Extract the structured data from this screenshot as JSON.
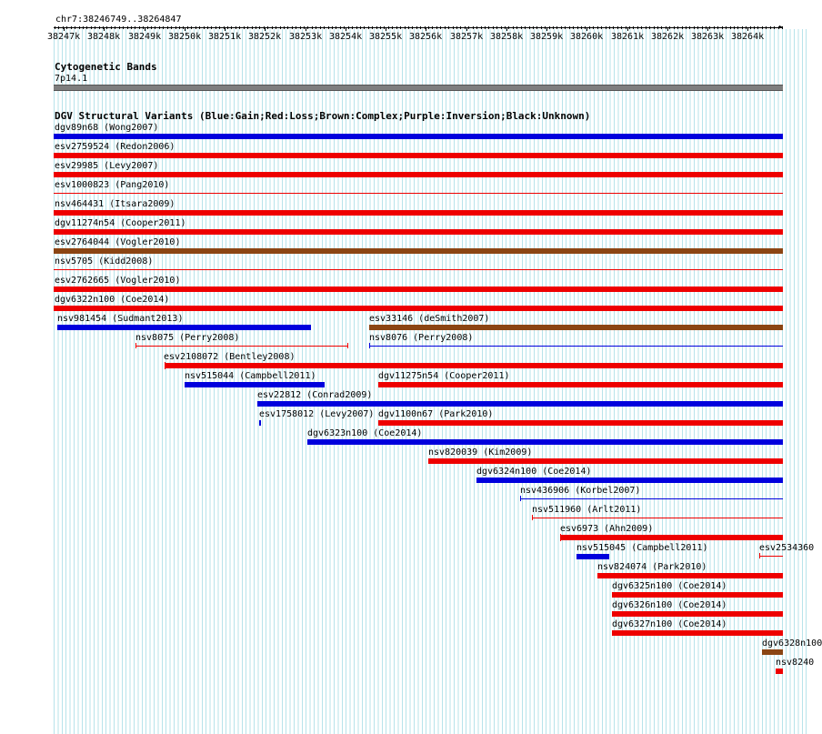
{
  "location": "chr7:38246749..38264847",
  "ruler": {
    "labels": [
      "38247k",
      "38248k",
      "38249k",
      "38250k",
      "38251k",
      "38252k",
      "38253k",
      "38254k",
      "38255k",
      "38256k",
      "38257k",
      "38258k",
      "38259k",
      "38260k",
      "38261k",
      "38262k",
      "38263k",
      "38264k"
    ]
  },
  "cytobands": {
    "title": "Cytogenetic Bands",
    "band": "7p14.1"
  },
  "dgv": {
    "title": "DGV Structural Variants (Blue:Gain;Red:Loss;Brown:Complex;Purple:Inversion;Black:Unknown)",
    "colors": {
      "blue": "#0000dd",
      "red": "#ee0000",
      "brown": "#8b4513"
    },
    "variants": [
      {
        "label": "dgv89n68 (Wong2007)",
        "color": "blue"
      },
      {
        "label": "esv2759524 (Redon2006)",
        "color": "red"
      },
      {
        "label": "esv29985 (Levy2007)",
        "color": "red"
      },
      {
        "label": "esv1000823 (Pang2010)",
        "color": "red"
      },
      {
        "label": "nsv464431 (Itsara2009)",
        "color": "red"
      },
      {
        "label": "dgv11274n54 (Cooper2011)",
        "color": "red"
      },
      {
        "label": "esv2764044 (Vogler2010)",
        "color": "brown"
      },
      {
        "label": "nsv5705 (Kidd2008)",
        "color": "red"
      },
      {
        "label": "esv2762665 (Vogler2010)",
        "color": "red"
      },
      {
        "label": "dgv6322n100 (Coe2014)",
        "color": "red"
      },
      {
        "label": "nsv981454 (Sudmant2013)",
        "color": "blue"
      },
      {
        "label": "esv33146 (deSmith2007)",
        "color": "brown"
      },
      {
        "label": "nsv8075 (Perry2008)",
        "color": "red"
      },
      {
        "label": "nsv8076 (Perry2008)",
        "color": "blue"
      },
      {
        "label": "esv2108072 (Bentley2008)",
        "color": "red"
      },
      {
        "label": "nsv515044 (Campbell2011)",
        "color": "blue"
      },
      {
        "label": "dgv11275n54 (Cooper2011)",
        "color": "red"
      },
      {
        "label": "esv22812 (Conrad2009)",
        "color": "blue"
      },
      {
        "label": "esv1758012 (Levy2007)",
        "color": "blue"
      },
      {
        "label": "dgv1100n67 (Park2010)",
        "color": "red"
      },
      {
        "label": "dgv6323n100 (Coe2014)",
        "color": "blue"
      },
      {
        "label": "nsv820039 (Kim2009)",
        "color": "red"
      },
      {
        "label": "dgv6324n100 (Coe2014)",
        "color": "blue"
      },
      {
        "label": "nsv436906 (Korbel2007)",
        "color": "blue"
      },
      {
        "label": "nsv511960 (Arlt2011)",
        "color": "red"
      },
      {
        "label": "esv6973 (Ahn2009)",
        "color": "red"
      },
      {
        "label": "nsv515045 (Campbell2011)",
        "color": "blue"
      },
      {
        "label": "esv2534360",
        "color": "red"
      },
      {
        "label": "nsv824074 (Park2010)",
        "color": "red"
      },
      {
        "label": "dgv6325n100 (Coe2014)",
        "color": "red"
      },
      {
        "label": "dgv6326n100 (Coe2014)",
        "color": "red"
      },
      {
        "label": "dgv6327n100 (Coe2014)",
        "color": "red"
      },
      {
        "label": "dgv6328n100",
        "color": "brown"
      },
      {
        "label": "nsv8240",
        "color": "red"
      }
    ]
  }
}
